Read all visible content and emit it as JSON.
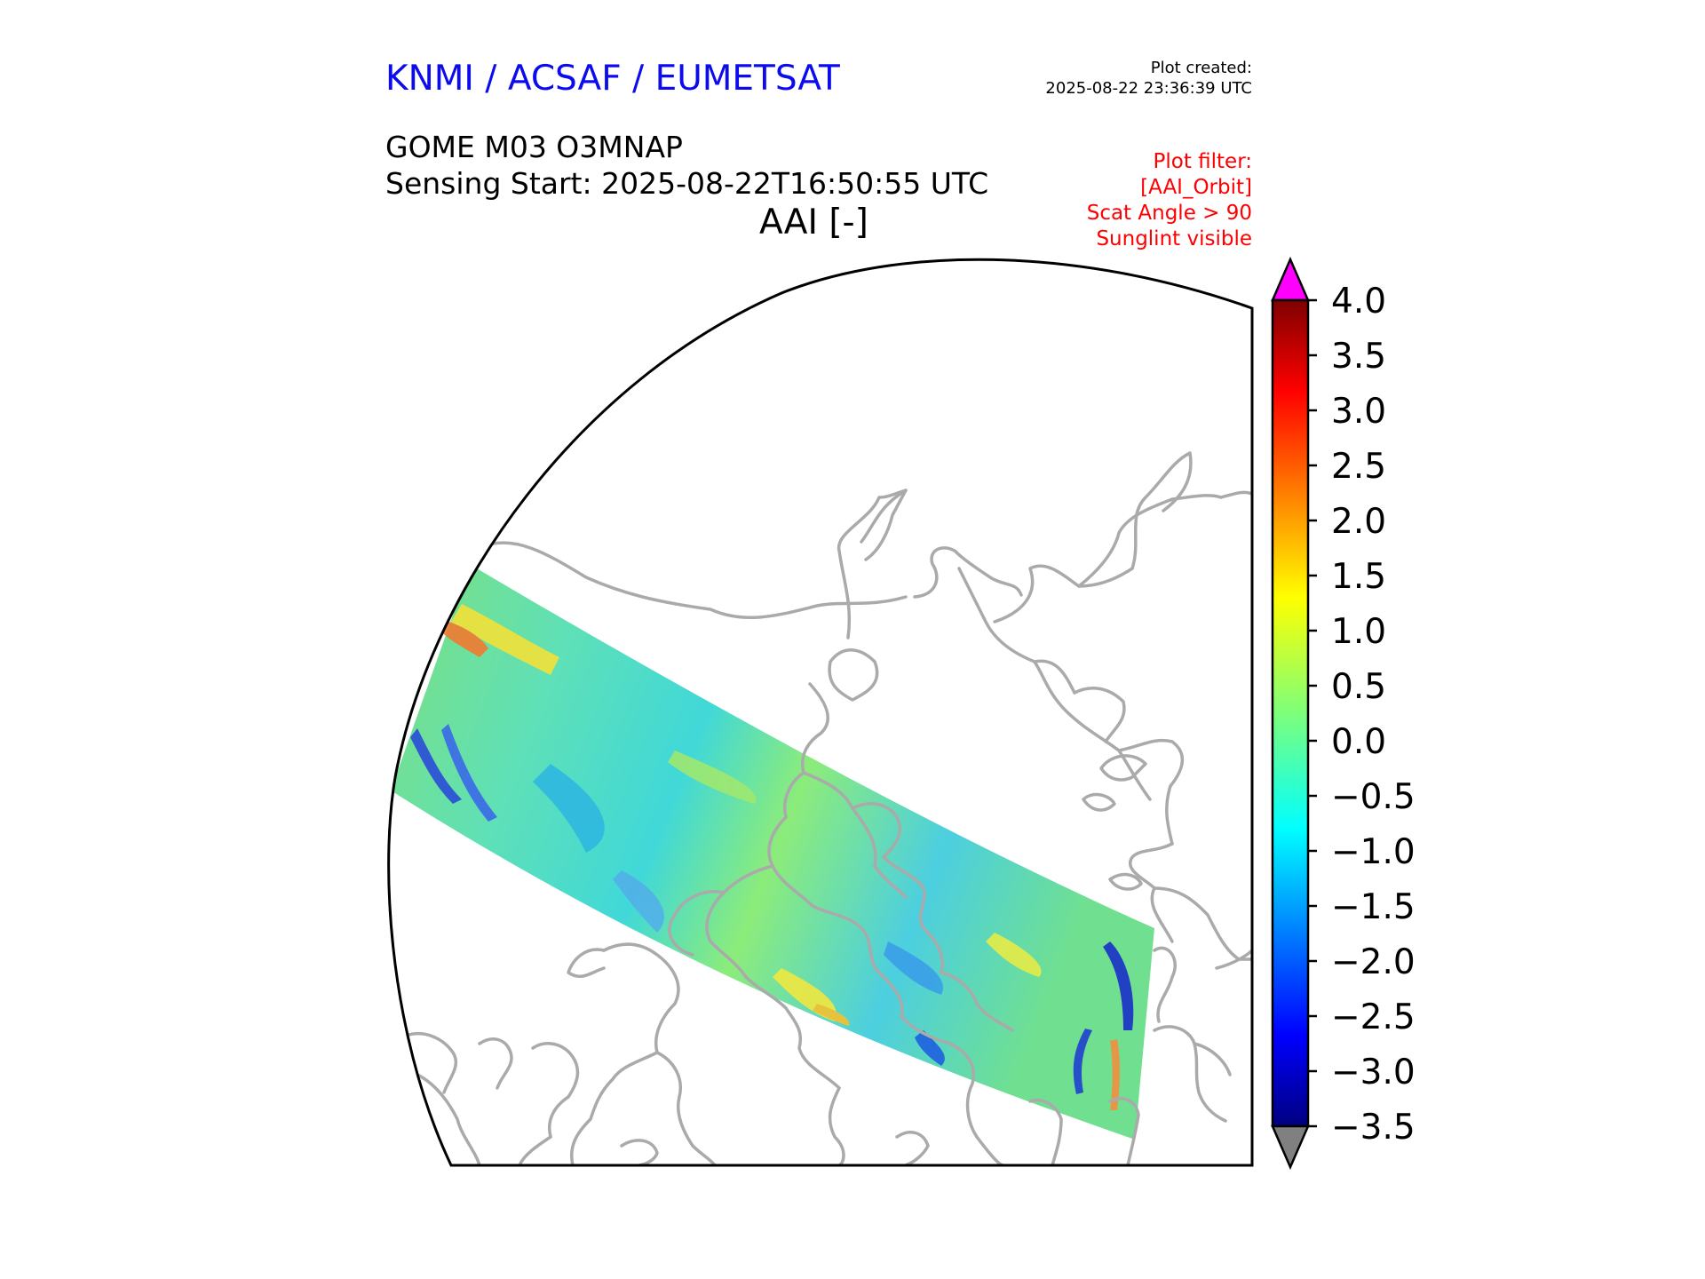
{
  "header": {
    "organisation": "KNMI / ACSAF / EUMETSAT",
    "plot_created_label": "Plot created:",
    "plot_created_value": "2025-08-22 23:36:39 UTC",
    "product": "GOME M03 O3MNAP",
    "sensing_start": "Sensing Start: 2025-08-22T16:50:55 UTC",
    "variable": "AAI [-]"
  },
  "plot_filter": [
    "Plot filter:",
    "[AAI_Orbit]",
    "Scat Angle > 90",
    "Sunglint visible"
  ],
  "colorbar": {
    "min": -3.5,
    "max": 4.0,
    "ticks": [
      "4.0",
      "3.5",
      "3.0",
      "2.5",
      "2.0",
      "1.5",
      "1.0",
      "0.5",
      "0.0",
      "−0.5",
      "−1.0",
      "−1.5",
      "−2.0",
      "−2.5",
      "−3.0",
      "−3.5"
    ],
    "over_color": "#ff00ff",
    "under_color": "#808080",
    "colormap": "jet"
  },
  "map": {
    "projection": "polar-stereographic-north",
    "land_outline_color": "#aaaaaa",
    "boundary_color": "#000000",
    "swath_typical_value": -0.3
  }
}
